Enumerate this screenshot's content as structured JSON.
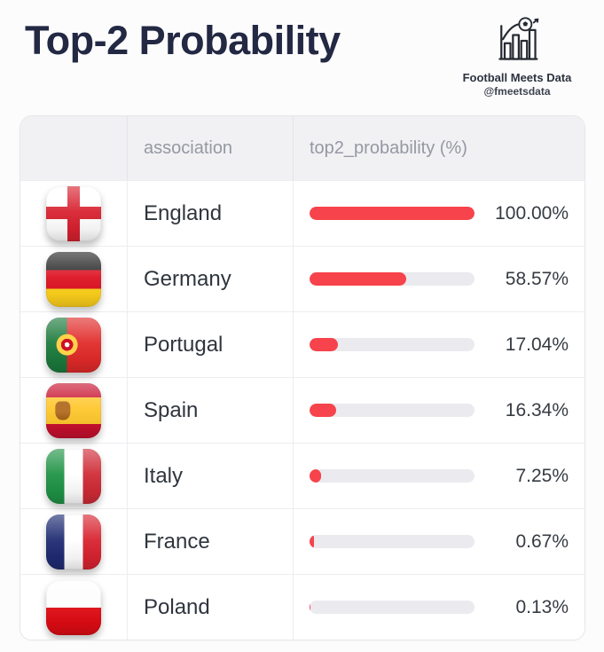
{
  "header": {
    "title": "Top-2 Probability",
    "brand": {
      "name": "Football Meets Data",
      "handle": "@fmeetsdata",
      "icon": "bar-chart-with-football-icon"
    }
  },
  "table": {
    "columns": [
      "",
      "association",
      "top2_probability (%)"
    ],
    "rows": [
      {
        "flag_id": "england",
        "association": "England",
        "probability": 100.0,
        "value_label": "100.00%"
      },
      {
        "flag_id": "germany",
        "association": "Germany",
        "probability": 58.57,
        "value_label": "58.57%"
      },
      {
        "flag_id": "portugal",
        "association": "Portugal",
        "probability": 17.04,
        "value_label": "17.04%"
      },
      {
        "flag_id": "spain",
        "association": "Spain",
        "probability": 16.34,
        "value_label": "16.34%"
      },
      {
        "flag_id": "italy",
        "association": "Italy",
        "probability": 7.25,
        "value_label": "7.25%"
      },
      {
        "flag_id": "france",
        "association": "France",
        "probability": 0.67,
        "value_label": "0.67%"
      },
      {
        "flag_id": "poland",
        "association": "Poland",
        "probability": 0.13,
        "value_label": "0.13%"
      }
    ]
  },
  "colors": {
    "bar_fill": "#f7434b",
    "bar_track": "#eaeaef",
    "header_bg": "#f1f1f4",
    "title_text": "#232843",
    "header_text": "#9598a2"
  },
  "chart_data": {
    "type": "bar",
    "orientation": "horizontal",
    "title": "Top-2 Probability",
    "categories": [
      "England",
      "Germany",
      "Portugal",
      "Spain",
      "Italy",
      "France",
      "Poland"
    ],
    "values": [
      100.0,
      58.57,
      17.04,
      16.34,
      7.25,
      0.67,
      0.13
    ],
    "value_labels": [
      "100.00%",
      "58.57%",
      "17.04%",
      "16.34%",
      "7.25%",
      "0.67%",
      "0.13%"
    ],
    "xlabel": "top2_probability (%)",
    "xlim": [
      0,
      100
    ],
    "legend": false,
    "grid": false,
    "bar_color": "#f7434b",
    "track_color": "#eaeaef"
  }
}
